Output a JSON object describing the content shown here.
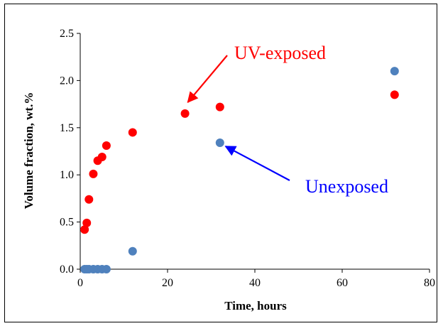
{
  "chart_data": {
    "type": "scatter",
    "xlabel": "Time, hours",
    "ylabel": "Volume fraction, wt.%",
    "xlim": [
      0,
      80
    ],
    "ylim": [
      0,
      2.5
    ],
    "xticks": [
      "0",
      "20",
      "40",
      "60",
      "80"
    ],
    "yticks": [
      "0.0",
      "0.5",
      "1.0",
      "1.5",
      "2.0",
      "2.5"
    ],
    "grid": false,
    "legend": "none",
    "series": [
      {
        "color": "#ff0000",
        "points": [
          [
            1,
            0.42
          ],
          [
            1.5,
            0.49
          ],
          [
            2,
            0.74
          ],
          [
            3,
            1.01
          ],
          [
            4,
            1.15
          ],
          [
            5,
            1.19
          ],
          [
            6,
            1.31
          ],
          [
            12,
            1.45
          ],
          [
            24,
            1.65
          ],
          [
            32,
            1.72
          ],
          [
            72,
            1.85
          ]
        ]
      },
      {
        "color": "#4f81bd",
        "points": [
          [
            1,
            0.0
          ],
          [
            1.5,
            0.0
          ],
          [
            2,
            0.0
          ],
          [
            3,
            0.0
          ],
          [
            4,
            0.0
          ],
          [
            5,
            0.0
          ],
          [
            6,
            0.0
          ],
          [
            12,
            0.19
          ],
          [
            32,
            1.34
          ],
          [
            72,
            2.1
          ]
        ]
      }
    ],
    "annotations": [
      {
        "text": "UV-exposed",
        "color": "#ff0000",
        "arrow_to": [
          24,
          1.65
        ]
      },
      {
        "text": "Unexposed",
        "color": "#0000ff",
        "arrow_to": [
          32,
          1.34
        ]
      }
    ]
  }
}
